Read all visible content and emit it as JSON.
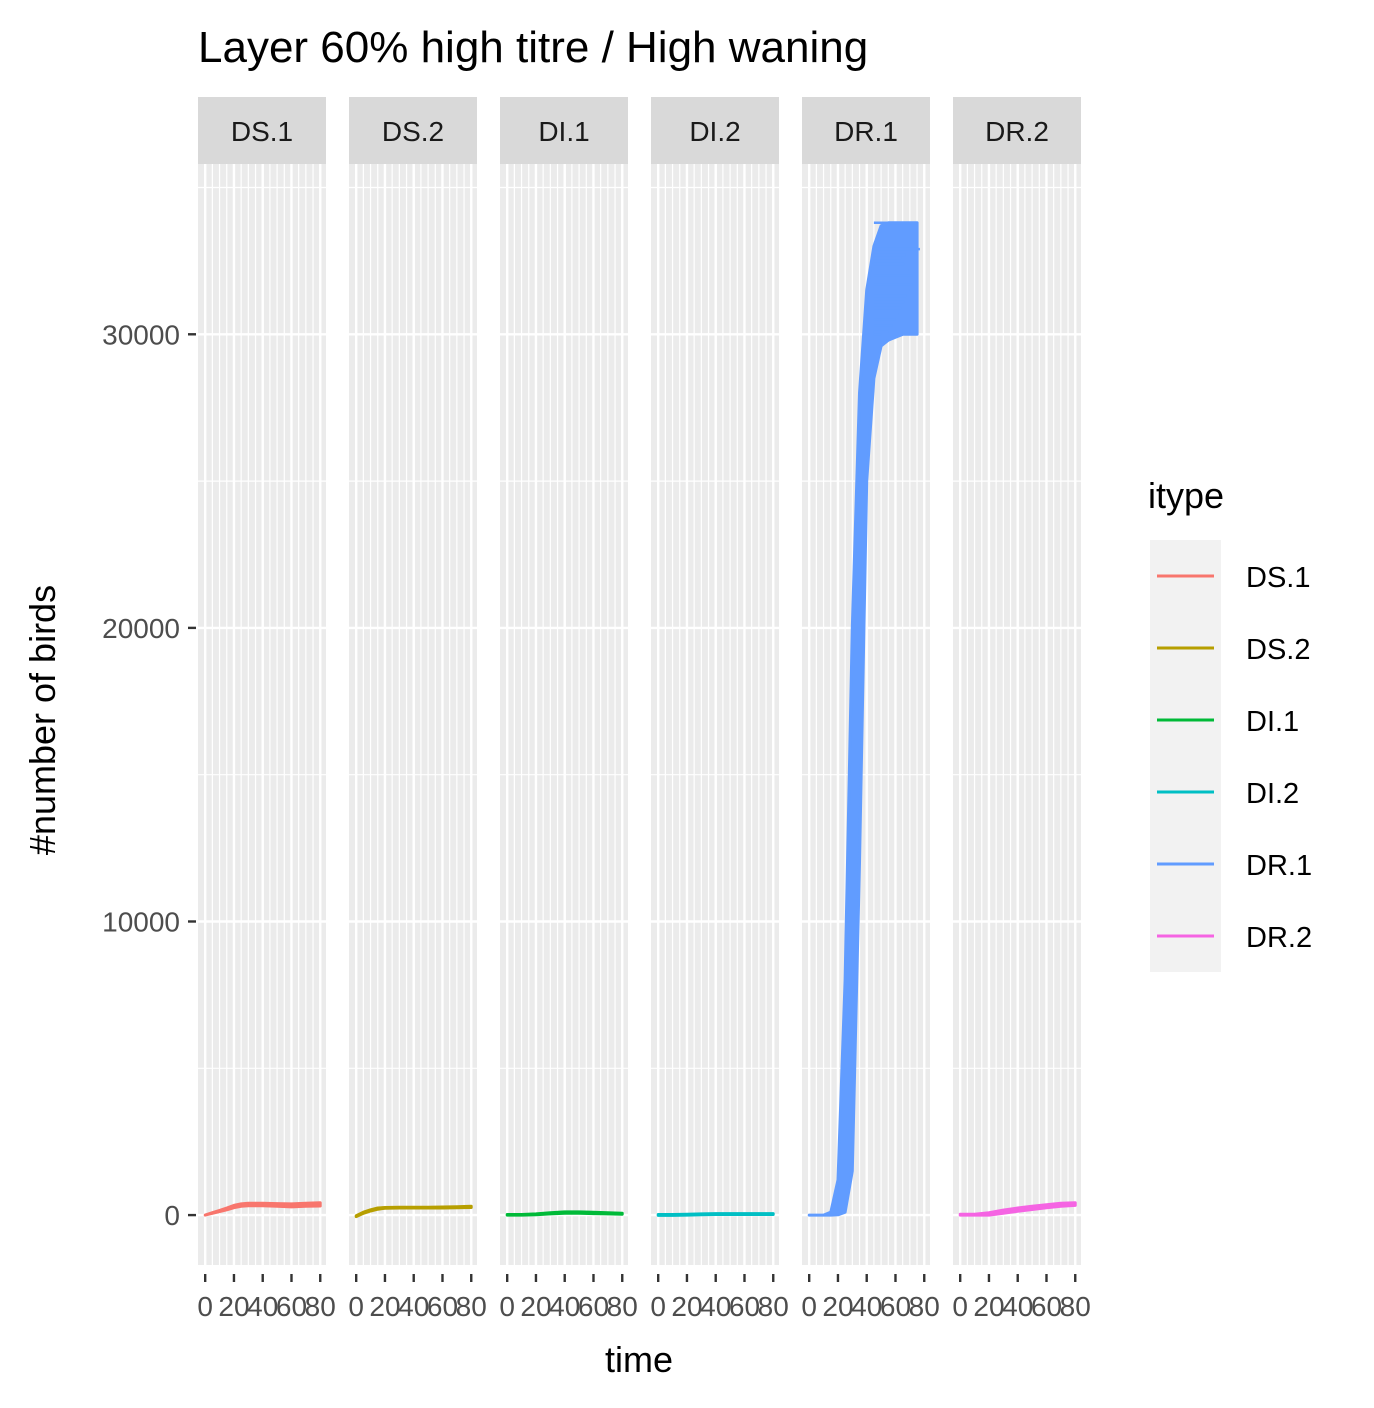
{
  "chart_data": {
    "type": "line",
    "title": "Layer 60% high titre / High waning",
    "xlabel": "time",
    "ylabel": "#number of birds",
    "facets": [
      "DS.1",
      "DS.2",
      "DI.1",
      "DI.2",
      "DR.1",
      "DR.2"
    ],
    "xlim": [
      -5,
      84
    ],
    "x_ticks": [
      0,
      20,
      40,
      60,
      80
    ],
    "x_tick_labels": [
      "0",
      "20",
      "40",
      "60",
      "80"
    ],
    "ylim": [
      -1700,
      35800
    ],
    "y_ticks": [
      0,
      10000,
      20000,
      30000
    ],
    "y_tick_labels": [
      "0",
      "10000",
      "20000",
      "30000"
    ],
    "grid": true,
    "legend": {
      "title": "itype",
      "position": "right",
      "entries": [
        "DS.1",
        "DS.2",
        "DI.1",
        "DI.2",
        "DR.1",
        "DR.2"
      ]
    },
    "colors": {
      "DS.1": "#F8766D",
      "DS.2": "#B79F00",
      "DI.1": "#00BA38",
      "DI.2": "#00BFC4",
      "DR.1": "#619CFF",
      "DR.2": "#F564E3"
    },
    "series": [
      {
        "name": "DS.1",
        "facet": "DS.1",
        "x": [
          0,
          5,
          10,
          15,
          20,
          25,
          30,
          40,
          50,
          60,
          70,
          80
        ],
        "lower": [
          0,
          60,
          120,
          180,
          250,
          300,
          320,
          320,
          300,
          280,
          300,
          310
        ],
        "upper": [
          0,
          80,
          160,
          240,
          330,
          380,
          400,
          400,
          390,
          380,
          400,
          420
        ]
      },
      {
        "name": "DS.2",
        "facet": "DS.2",
        "x": [
          0,
          5,
          10,
          15,
          20,
          30,
          40,
          50,
          60,
          70,
          80
        ],
        "lower": [
          -50,
          60,
          140,
          200,
          230,
          240,
          240,
          240,
          240,
          250,
          260
        ],
        "upper": [
          -20,
          100,
          180,
          240,
          260,
          270,
          270,
          270,
          275,
          285,
          300
        ]
      },
      {
        "name": "DI.1",
        "facet": "DI.1",
        "x": [
          0,
          10,
          20,
          30,
          40,
          50,
          60,
          70,
          80
        ],
        "lower": [
          0,
          0,
          10,
          40,
          60,
          60,
          50,
          40,
          30
        ],
        "upper": [
          20,
          20,
          40,
          80,
          110,
          110,
          100,
          80,
          60
        ]
      },
      {
        "name": "DI.2",
        "facet": "DI.2",
        "x": [
          0,
          10,
          20,
          30,
          40,
          50,
          60,
          70,
          80
        ],
        "lower": [
          -10,
          -10,
          0,
          10,
          20,
          20,
          20,
          20,
          20
        ],
        "upper": [
          20,
          20,
          30,
          40,
          50,
          50,
          50,
          50,
          50
        ]
      },
      {
        "name": "DR.1",
        "facet": "DR.1",
        "x": [
          0,
          10,
          15,
          20,
          25,
          30,
          35,
          40,
          45,
          50,
          55,
          60,
          65,
          70,
          75
        ],
        "lower": [
          0,
          0,
          0,
          10,
          100,
          1500,
          12000,
          25000,
          28500,
          29600,
          29800,
          29900,
          30000,
          30000,
          30000
        ],
        "upper": [
          0,
          0,
          100,
          1200,
          8000,
          20000,
          28000,
          31500,
          33000,
          33700,
          33800,
          33800,
          33800,
          33800,
          33800
        ],
        "ends": [
          [
            45,
            29800
          ],
          [
            50,
            30000
          ],
          [
            55,
            30100
          ],
          [
            58,
            30300
          ],
          [
            60,
            30500
          ],
          [
            62,
            30700
          ],
          [
            64,
            30900
          ],
          [
            66,
            31100
          ],
          [
            68,
            31300
          ],
          [
            70,
            31500
          ],
          [
            72,
            31700
          ],
          [
            76,
            31600
          ],
          [
            72,
            32000
          ],
          [
            69,
            32200
          ],
          [
            66,
            32400
          ],
          [
            64,
            32600
          ],
          [
            67,
            32700
          ],
          [
            77,
            32900
          ],
          [
            66,
            33800
          ]
        ]
      },
      {
        "name": "DR.2",
        "facet": "DR.2",
        "x": [
          0,
          10,
          20,
          30,
          40,
          50,
          60,
          70,
          80
        ],
        "lower": [
          0,
          0,
          0,
          60,
          130,
          190,
          250,
          300,
          330
        ],
        "upper": [
          30,
          30,
          80,
          170,
          240,
          300,
          350,
          400,
          420
        ]
      }
    ]
  }
}
